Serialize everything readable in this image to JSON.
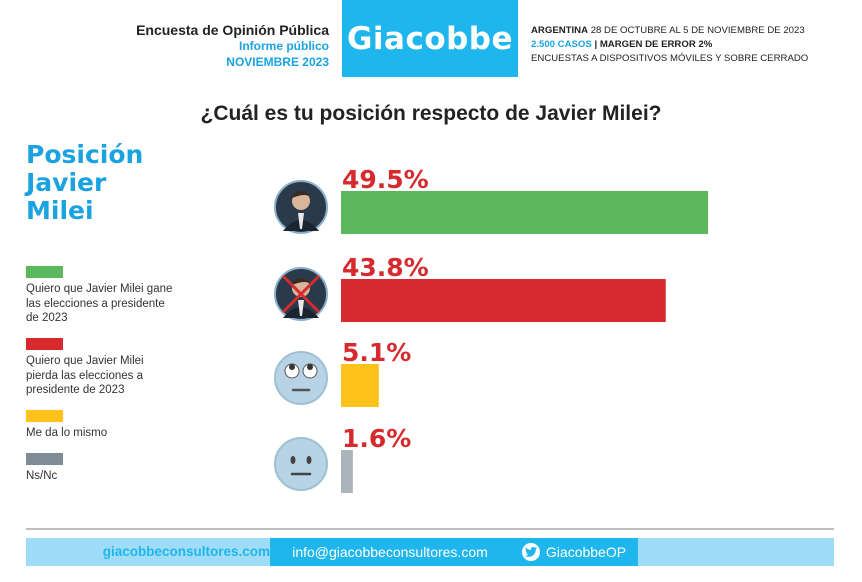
{
  "header": {
    "line1": "Encuesta de Opinión Pública",
    "line2": "Informe público",
    "line3": "NOVIEMBRE 2023",
    "brand": "Giacobbe",
    "info1_bold": "ARGENTINA",
    "info1_rest": " 28 DE OCTUBRE AL 5 DE NOVIEMBRE DE 2023",
    "info2_blue": "2.500 CASOS",
    "info2_sep": " | ",
    "info2_rest": "MARGEN DE ERROR 2%",
    "info3": "ENCUESTAS A DISPOSITIVOS MÓVILES Y SOBRE CERRADO"
  },
  "question": "¿Cuál es tu posición respecto de Javier Milei?",
  "side_title": [
    "Posición",
    "Javier",
    "Milei"
  ],
  "legend": [
    {
      "label": "Quiero que Javier Milei gane las elecciones a presidente de 2023",
      "color": "#5cb85c"
    },
    {
      "label": "Quiero que Javier Milei pierda las elecciones a presidente de 2023",
      "color": "#d62a2f"
    },
    {
      "label": "Me da lo mismo",
      "color": "#ffc21a"
    },
    {
      "label": "Ns/Nc",
      "color": "#7f8c95"
    }
  ],
  "chart_data": {
    "type": "bar",
    "orientation": "horizontal",
    "title": "¿Cuál es tu posición respecto de Javier Milei?",
    "categories": [
      "Quiero que Javier Milei gane las elecciones a presidente de 2023",
      "Quiero que Javier Milei pierda las elecciones a presidente de 2023",
      "Me da lo mismo",
      "Ns/Nc"
    ],
    "values": [
      49.5,
      43.8,
      5.1,
      1.6
    ],
    "value_labels": [
      "49.5%",
      "43.8%",
      "5.1%",
      "1.6%"
    ],
    "colors": [
      "#5cb85c",
      "#d62a2f",
      "#ffc21a",
      "#aab4bb"
    ],
    "label_color": "#d62a2f",
    "icons": [
      "milei-photo-icon",
      "milei-crossed-photo-icon",
      "eye-roll-emoji-icon",
      "neutral-face-emoji-icon"
    ],
    "grid": false
  },
  "footer": {
    "web": "giacobbeconsultores.com",
    "email": "info@giacobbeconsultores.com",
    "twitter": "GiacobbeOP"
  }
}
